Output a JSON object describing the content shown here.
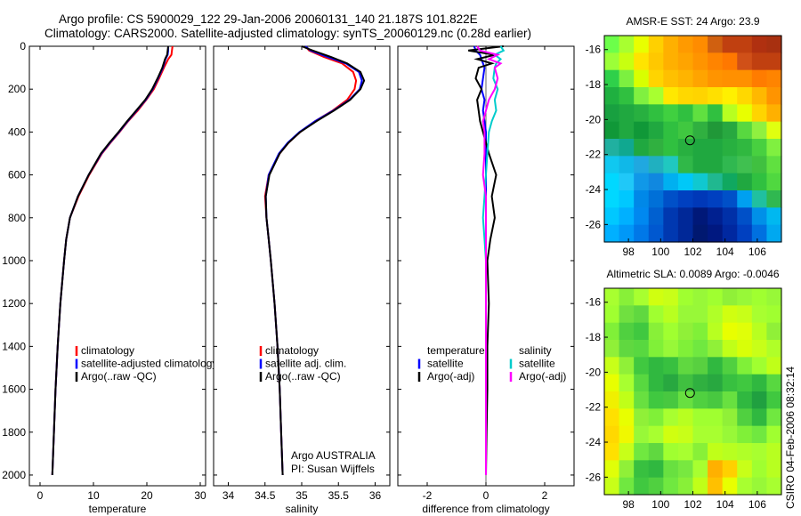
{
  "header": {
    "line1": "Argo profile: CS 5900029_122 29-Jan-2006 20060131_140 21.187S 101.822E",
    "line2": "Climatology: CARS2000. Satellite-adjusted climatology: synTS_20060129.nc (0.28d earlier)"
  },
  "side_text": "CSIRO 04-Feb-2006 08:32:14",
  "colors": {
    "climatology": "#ff0000",
    "satellite": "#0000ff",
    "argo": "#000000",
    "sal_satellite": "#00cccc",
    "sal_argo": "#ff00ff"
  },
  "chart_data": [
    {
      "type": "line",
      "name": "temperature-panel",
      "xlabel": "temperature",
      "xlim": [
        -2,
        31
      ],
      "ylim": [
        0,
        2050
      ],
      "y_reversed": true,
      "xticks": [
        0,
        10,
        20,
        30
      ],
      "yticks": [
        0,
        200,
        400,
        600,
        800,
        1000,
        1200,
        1400,
        1600,
        1800,
        2000
      ],
      "legend": [
        "climatology",
        "satellite-adjusted climatology",
        "Argo(..raw -QC)"
      ],
      "depth": [
        0,
        20,
        40,
        60,
        100,
        150,
        200,
        250,
        300,
        350,
        400,
        450,
        500,
        600,
        700,
        800,
        900,
        1000,
        1200,
        1400,
        1600,
        1800,
        2000
      ],
      "series": [
        {
          "name": "climatology",
          "color": "#ff0000",
          "values": [
            24.8,
            24.7,
            24.6,
            24.0,
            23.2,
            22.3,
            21.3,
            19.9,
            18.3,
            16.5,
            14.9,
            13.2,
            11.6,
            9.2,
            7.2,
            5.6,
            4.9,
            4.5,
            3.8,
            3.3,
            2.9,
            2.6,
            2.3
          ]
        },
        {
          "name": "satellite-adjusted climatology",
          "color": "#0000ff",
          "values": [
            24.0,
            24.0,
            23.9,
            23.5,
            23.0,
            22.1,
            21.1,
            19.8,
            18.1,
            16.4,
            14.8,
            13.1,
            11.5,
            9.1,
            7.1,
            5.6,
            4.9,
            4.5,
            3.8,
            3.3,
            2.9,
            2.6,
            2.3
          ]
        },
        {
          "name": "Argo(..raw -QC)",
          "color": "#000000",
          "values": [
            24.0,
            23.9,
            23.8,
            23.4,
            22.9,
            22.0,
            21.0,
            19.7,
            18.0,
            16.3,
            14.7,
            13.0,
            11.4,
            9.1,
            7.1,
            5.6,
            4.9,
            4.5,
            3.8,
            3.3,
            2.9,
            2.6,
            2.3
          ]
        }
      ]
    },
    {
      "type": "line",
      "name": "salinity-panel",
      "xlabel": "salinity",
      "xlim": [
        33.8,
        36.2
      ],
      "ylim": [
        0,
        2050
      ],
      "y_reversed": true,
      "xticks": [
        34,
        34.5,
        35,
        35.5,
        36
      ],
      "xticklabels": [
        "34",
        "34.5",
        "35",
        "35.5",
        "36"
      ],
      "yticks": [
        0,
        200,
        400,
        600,
        800,
        1000,
        1200,
        1400,
        1600,
        1800,
        2000
      ],
      "legend": [
        "climatology",
        "satellite adj. clim.",
        "Argo(..raw -QC)"
      ],
      "annotation": [
        "Argo AUSTRALIA",
        "PI: Susan Wijffels"
      ],
      "depth": [
        0,
        20,
        50,
        80,
        120,
        160,
        200,
        250,
        300,
        350,
        400,
        450,
        500,
        600,
        700,
        800,
        900,
        1000,
        1200,
        1400,
        1600,
        1800,
        2000
      ],
      "series": [
        {
          "name": "climatology",
          "color": "#ff0000",
          "values": [
            35.05,
            35.1,
            35.3,
            35.55,
            35.7,
            35.74,
            35.72,
            35.62,
            35.42,
            35.18,
            34.98,
            34.82,
            34.7,
            34.55,
            34.5,
            34.52,
            34.55,
            34.58,
            34.63,
            34.67,
            34.7,
            34.72,
            34.74
          ]
        },
        {
          "name": "satellite adj. clim.",
          "color": "#0000ff",
          "values": [
            35.05,
            35.12,
            35.35,
            35.6,
            35.78,
            35.82,
            35.79,
            35.65,
            35.43,
            35.18,
            34.97,
            34.81,
            34.69,
            34.55,
            34.51,
            34.52,
            34.55,
            34.58,
            34.63,
            34.67,
            34.7,
            34.72,
            34.74
          ]
        },
        {
          "name": "Argo(..raw -QC)",
          "color": "#000000",
          "values": [
            35.0,
            35.15,
            35.4,
            35.62,
            35.8,
            35.85,
            35.8,
            35.66,
            35.44,
            35.2,
            34.98,
            34.82,
            34.7,
            34.56,
            34.51,
            34.52,
            34.55,
            34.58,
            34.63,
            34.67,
            34.7,
            34.72,
            34.74
          ]
        }
      ]
    },
    {
      "type": "line",
      "name": "difference-panel",
      "xlabel": "difference from climatology",
      "xlim": [
        -3,
        3
      ],
      "ylim": [
        0,
        2050
      ],
      "y_reversed": true,
      "xticks": [
        -2,
        0,
        2
      ],
      "yticks": [
        0,
        200,
        400,
        600,
        800,
        1000,
        1200,
        1400,
        1600,
        1800,
        2000
      ],
      "legend_left": {
        "title": "temperature",
        "items": [
          "satellite",
          "Argo(-adj)"
        ]
      },
      "legend_right": {
        "title": "salinity",
        "items": [
          "satellite",
          "Argo(-adj)"
        ]
      },
      "depth": [
        0,
        20,
        40,
        60,
        80,
        100,
        150,
        200,
        250,
        300,
        350,
        400,
        500,
        600,
        700,
        800,
        900,
        1000,
        1200,
        1400,
        1600,
        1800,
        2000
      ],
      "series": [
        {
          "name": "temperature satellite",
          "color": "#0000ff",
          "values": [
            -0.4,
            -0.35,
            -0.2,
            -0.15,
            -0.1,
            -0.05,
            -0.1,
            -0.15,
            -0.05,
            -0.1,
            -0.05,
            0.0,
            0.0,
            0.0,
            0.0,
            0.0,
            0.0,
            0.0,
            0.0,
            0.0,
            0.0,
            0.0,
            0.0
          ]
        },
        {
          "name": "temperature Argo(-adj)",
          "color": "#000000",
          "values": [
            0.6,
            -0.6,
            0.3,
            -0.3,
            0.2,
            -0.25,
            -0.35,
            -0.15,
            -0.3,
            -0.25,
            -0.2,
            -0.1,
            0.1,
            0.35,
            0.2,
            0.3,
            0.15,
            0.05,
            0.1,
            0.05,
            0.05,
            0.02,
            0.0
          ]
        },
        {
          "name": "salinity satellite",
          "color": "#00cccc",
          "values": [
            0.5,
            0.6,
            0.3,
            0.5,
            0.35,
            0.3,
            0.25,
            0.4,
            0.3,
            0.35,
            0.2,
            0.1,
            0.05,
            0.0,
            -0.05,
            -0.1,
            -0.05,
            0.0,
            0.0,
            0.0,
            0.0,
            0.0,
            0.0
          ]
        },
        {
          "name": "salinity Argo(-adj)",
          "color": "#ff00ff",
          "values": [
            -0.3,
            -0.2,
            0.4,
            0.1,
            0.5,
            0.3,
            0.4,
            0.3,
            0.1,
            0.0,
            -0.1,
            -0.05,
            -0.05,
            -0.1,
            0.0,
            0.0,
            0.0,
            0.0,
            0.0,
            0.0,
            0.0,
            0.0,
            0.0
          ]
        }
      ]
    },
    {
      "type": "heatmap",
      "name": "sst-map",
      "title": "AMSR-E SST: 24 Argo: 23.9",
      "xlim": [
        96.5,
        107.5
      ],
      "ylim": [
        -27,
        -15.2
      ],
      "xticks": [
        98,
        100,
        102,
        104,
        106
      ],
      "yticks": [
        -16,
        -18,
        -20,
        -22,
        -24,
        -26
      ],
      "marker": {
        "lon": 101.822,
        "lat": -21.187
      },
      "colors": {
        "rows": [
          [
            "#6cff4a",
            "#a8ff30",
            "#e8ff00",
            "#ffd000",
            "#ffb000",
            "#ff9a00",
            "#ff8c00",
            "#d06010",
            "#c04010",
            "#c04010",
            "#b03010",
            "#a83010"
          ],
          [
            "#9cff38",
            "#c8ff10",
            "#ffe400",
            "#ffc800",
            "#ffb000",
            "#ffa400",
            "#ff9400",
            "#ff8400",
            "#ff7800",
            "#d05018",
            "#c04010",
            "#c04010"
          ],
          [
            "#2fd04a",
            "#7cf040",
            "#d8ff00",
            "#ffd400",
            "#ffc000",
            "#ffb400",
            "#ffa400",
            "#ff9400",
            "#ff9000",
            "#ff9000",
            "#ff7c00",
            "#ff8400"
          ],
          [
            "#1fb040",
            "#30c040",
            "#80f040",
            "#a8ff30",
            "#ffe800",
            "#ffd800",
            "#ffd400",
            "#ffe000",
            "#fff000",
            "#ffd800",
            "#ffb800",
            "#ff9400"
          ],
          [
            "#18a040",
            "#20a840",
            "#28b040",
            "#30c040",
            "#40d040",
            "#30c040",
            "#60e040",
            "#30c040",
            "#b8ff20",
            "#e8ff00",
            "#ffd400",
            "#ffb000"
          ],
          [
            "#109838",
            "#20a840",
            "#109838",
            "#20a840",
            "#30c040",
            "#40c840",
            "#30b040",
            "#209838",
            "#28a840",
            "#58d840",
            "#90f040",
            "#e0ff10"
          ],
          [
            "#20b0a0",
            "#10a890",
            "#20a840",
            "#30b040",
            "#30c040",
            "#28b040",
            "#20a840",
            "#20a840",
            "#28b040",
            "#30b840",
            "#48d040",
            "#80f040"
          ],
          [
            "#10c8f0",
            "#10b8e8",
            "#20a8e0",
            "#20b0c0",
            "#20c8c0",
            "#30b848",
            "#20a840",
            "#20a840",
            "#30b850",
            "#40c050",
            "#40c040",
            "#60e040"
          ],
          [
            "#00d8ff",
            "#20c8f8",
            "#1098e8",
            "#1088e0",
            "#00b0f0",
            "#00c8f8",
            "#10c8d0",
            "#20b890",
            "#10a860",
            "#20a840",
            "#30c040",
            "#50d840"
          ],
          [
            "#00d8ff",
            "#00c8ff",
            "#0088e8",
            "#0070d8",
            "#0050c8",
            "#0040c0",
            "#0038b8",
            "#0040c0",
            "#0050c8",
            "#00a0f0",
            "#20c0a0",
            "#30b850"
          ],
          [
            "#00c8ff",
            "#00b0ff",
            "#0088f0",
            "#0060d0",
            "#0038b0",
            "#002898",
            "#001878",
            "#002090",
            "#0030a8",
            "#0050c8",
            "#0090e8",
            "#00b8f0"
          ],
          [
            "#00b0ff",
            "#0098f8",
            "#0078e8",
            "#0058d0",
            "#0038b0",
            "#002898",
            "#001870",
            "#001880",
            "#0028a0",
            "#0040c0",
            "#0070e0",
            "#00a8f0"
          ]
        ]
      }
    },
    {
      "type": "heatmap",
      "name": "sla-map",
      "title": "Altimetric SLA: 0.0089 Argo: -0.0046",
      "xlim": [
        96.5,
        107.5
      ],
      "ylim": [
        -27,
        -15.2
      ],
      "xticks": [
        98,
        100,
        102,
        104,
        106
      ],
      "yticks": [
        -16,
        -18,
        -20,
        -22,
        -24,
        -26
      ],
      "marker": {
        "lon": 101.822,
        "lat": -21.187
      },
      "colors": {
        "rows": [
          [
            "#a8ff30",
            "#88f038",
            "#a8ff30",
            "#d0ff10",
            "#c8ff18",
            "#a0ff30",
            "#98f838",
            "#a0ff30",
            "#90f038",
            "#98f838",
            "#a0ff30",
            "#98f838"
          ],
          [
            "#a0ff30",
            "#70e040",
            "#60d840",
            "#a0ff30",
            "#b8ff20",
            "#98f838",
            "#98f838",
            "#b0ff28",
            "#d0ff10",
            "#c8ff18",
            "#a8ff30",
            "#a0ff30"
          ],
          [
            "#80f038",
            "#50d040",
            "#40c840",
            "#88f038",
            "#a0ff30",
            "#90f038",
            "#80f038",
            "#b8ff20",
            "#e8ff00",
            "#e0ff08",
            "#b8ff20",
            "#90f038"
          ],
          [
            "#90f038",
            "#60d840",
            "#58d840",
            "#80f038",
            "#98f838",
            "#80f038",
            "#70e840",
            "#90f038",
            "#c0ff18",
            "#d8ff08",
            "#c8ff18",
            "#b0ff28"
          ],
          [
            "#c8ff18",
            "#90f038",
            "#40c840",
            "#30b840",
            "#38c040",
            "#60d840",
            "#58d040",
            "#30b840",
            "#50d040",
            "#80f038",
            "#a0ff30",
            "#c0ff18"
          ],
          [
            "#e8ff00",
            "#a8ff30",
            "#58d840",
            "#30b840",
            "#28a840",
            "#40c040",
            "#30b040",
            "#28a840",
            "#38c040",
            "#40c840",
            "#30b840",
            "#58d840"
          ],
          [
            "#f0f000",
            "#c0ff18",
            "#68e040",
            "#40c840",
            "#48c840",
            "#68e040",
            "#50d040",
            "#48c840",
            "#68e040",
            "#30b840",
            "#20a040",
            "#40c840"
          ],
          [
            "#ffe000",
            "#e8ff00",
            "#90f038",
            "#80f038",
            "#a8ff30",
            "#b8ff20",
            "#a0ff30",
            "#a0ff30",
            "#90f038",
            "#50d040",
            "#30b840",
            "#70e840"
          ],
          [
            "#ffd800",
            "#f0f800",
            "#98f838",
            "#a8ff30",
            "#d0ff10",
            "#c8ff18",
            "#a8ff30",
            "#a8ff30",
            "#98f838",
            "#80f038",
            "#70e840",
            "#a0ff30"
          ],
          [
            "#ffe000",
            "#c8ff18",
            "#70e840",
            "#60d840",
            "#a0ff30",
            "#a8ff30",
            "#88f038",
            "#c0ff18",
            "#b8ff20",
            "#b0ff28",
            "#a8ff30",
            "#b8ff20"
          ],
          [
            "#e0ff08",
            "#90f038",
            "#38c040",
            "#30b840",
            "#68e040",
            "#78e840",
            "#a8ff30",
            "#ffb000",
            "#ffd000",
            "#c8ff18",
            "#a0ff30",
            "#b8ff20"
          ],
          [
            "#c8ff18",
            "#70e840",
            "#40c840",
            "#50d040",
            "#70e840",
            "#88f038",
            "#c0ff18",
            "#ffc000",
            "#e8ff00",
            "#a8ff30",
            "#98f838",
            "#a8ff30"
          ]
        ]
      }
    }
  ]
}
